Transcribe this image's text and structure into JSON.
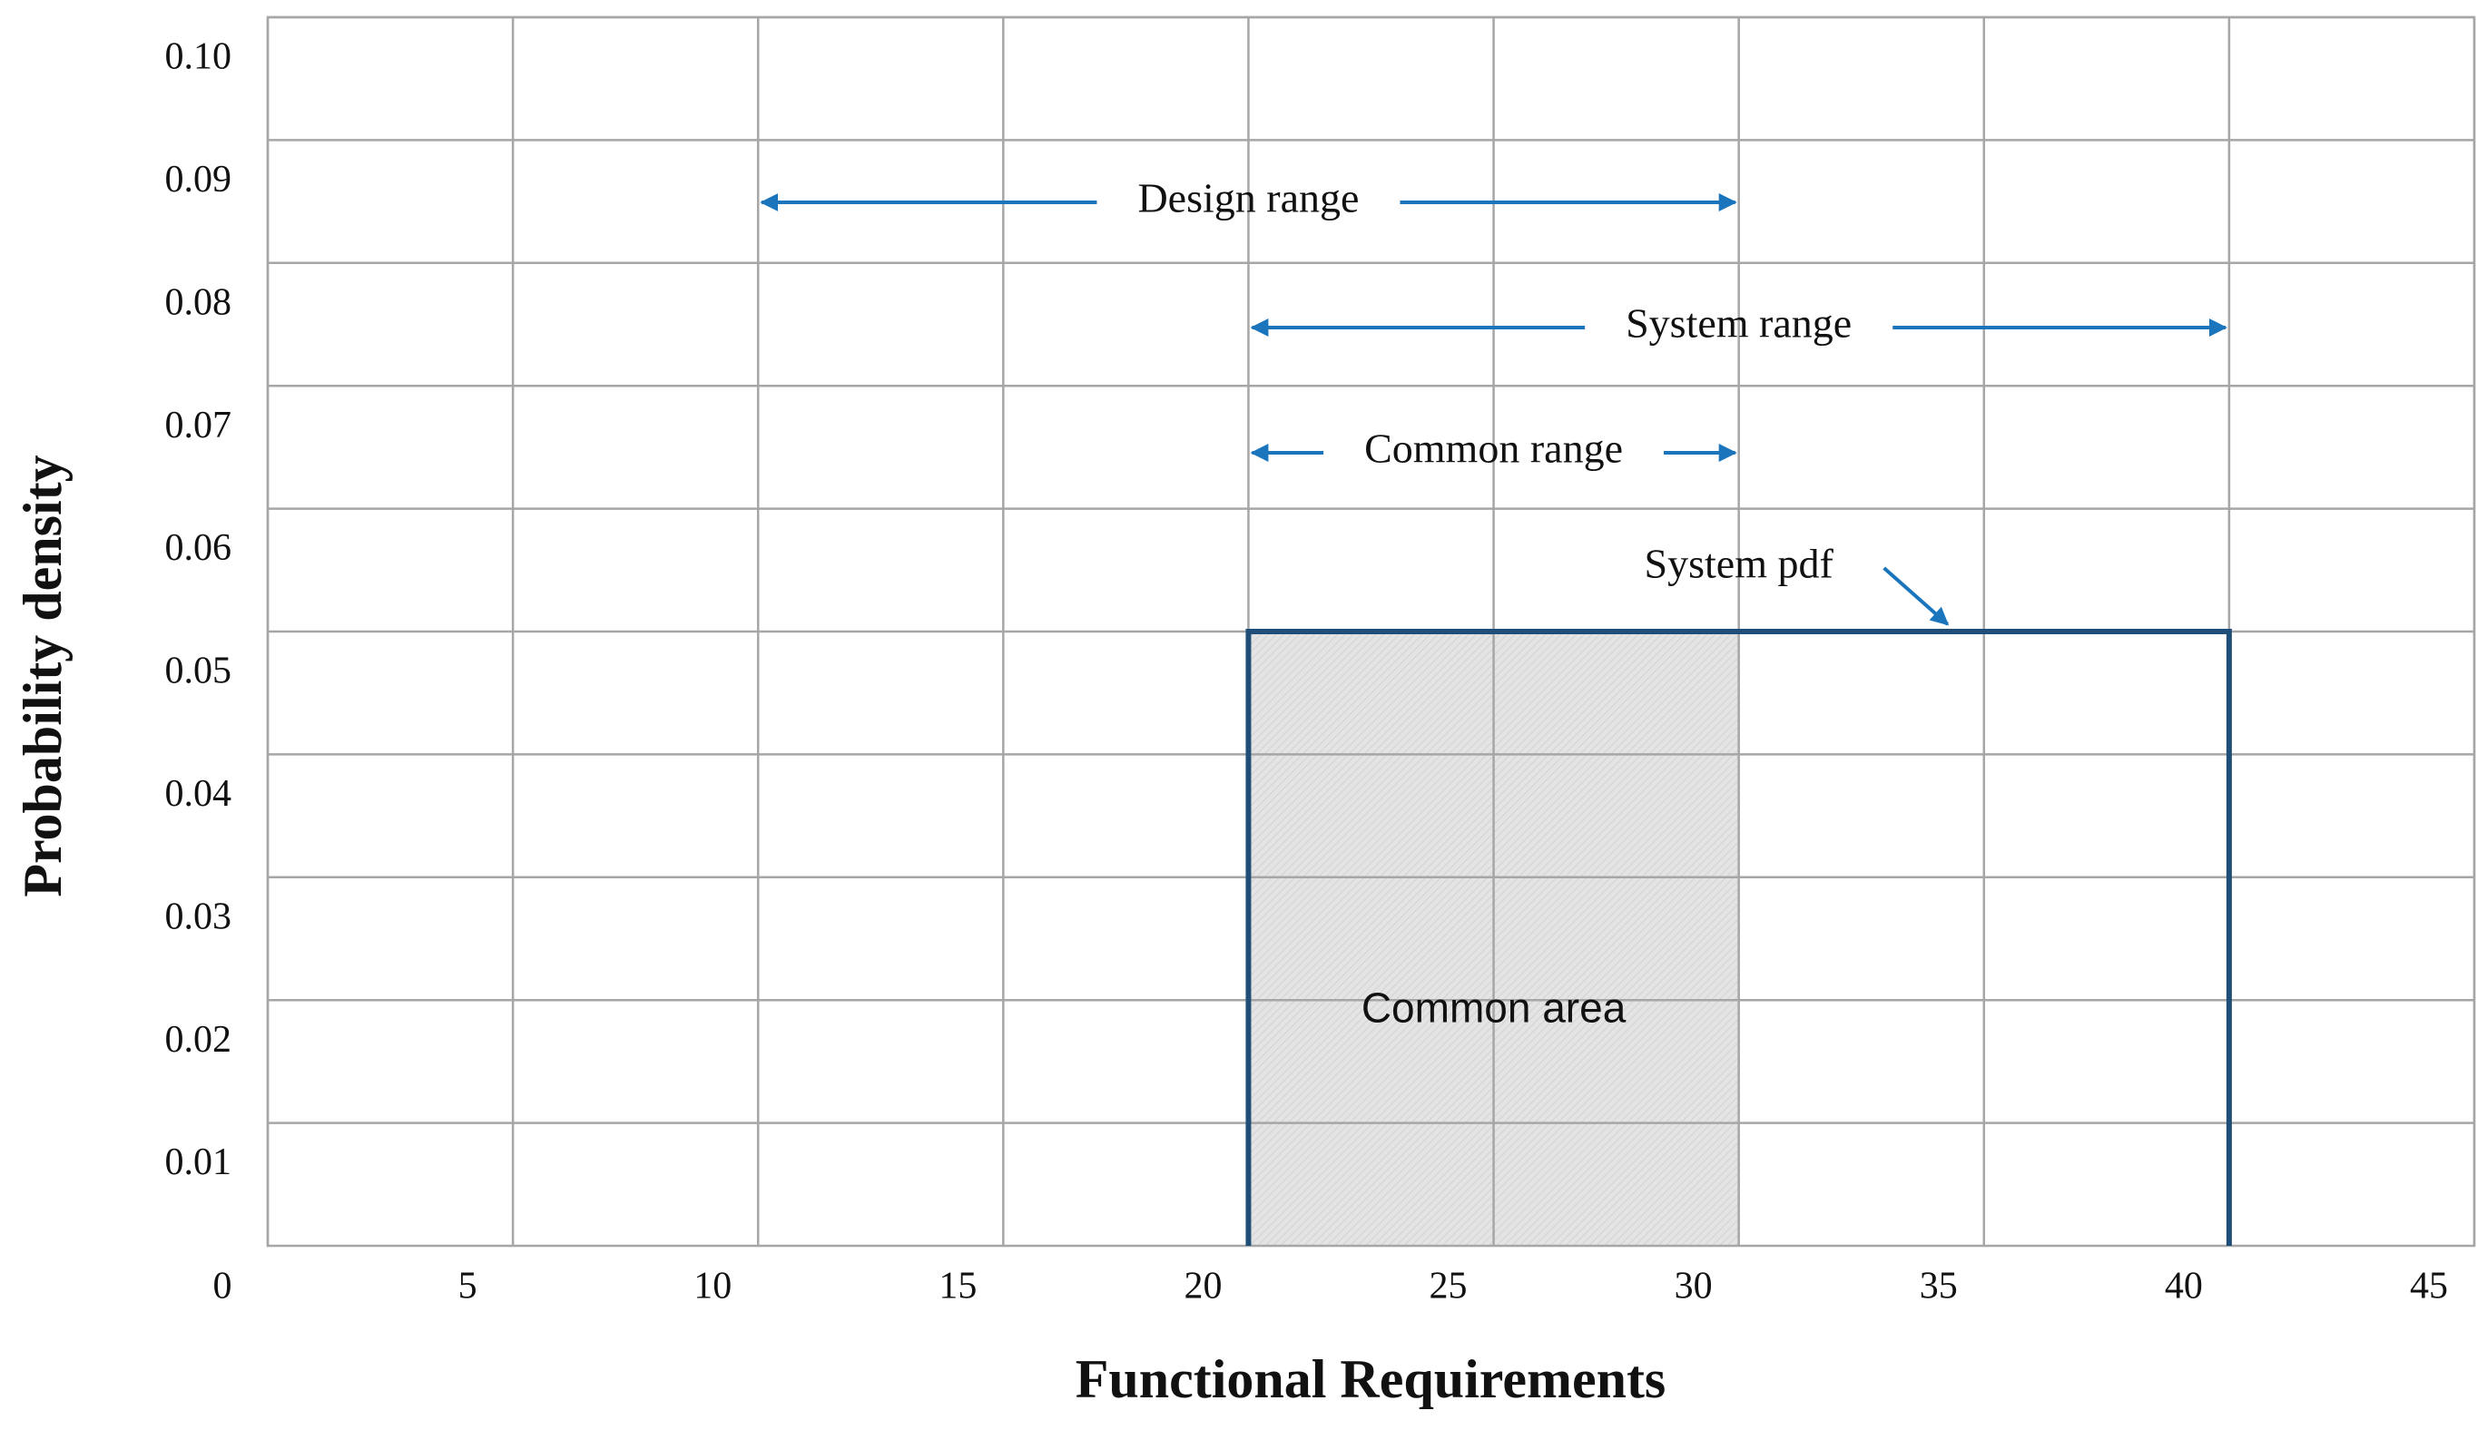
{
  "chart_data": {
    "type": "line",
    "xlabel": "Functional Requirements",
    "ylabel": "Probability density",
    "xlim": [
      0,
      45
    ],
    "xticks": [
      0,
      5,
      10,
      15,
      20,
      25,
      30,
      35,
      40,
      45
    ],
    "ylim": [
      0,
      0.1
    ],
    "yticks": [
      0.01,
      0.02,
      0.03,
      0.04,
      0.05,
      0.06,
      0.07,
      0.08,
      0.09,
      {
        "value": 0.1,
        "label": "0.10"
      }
    ],
    "grid": true,
    "series": [
      {
        "name": "System pdf",
        "color": "#1f4e79",
        "x": [
          20,
          20,
          40,
          40
        ],
        "values": [
          0,
          0.05,
          0.05,
          0
        ]
      }
    ],
    "common_area": {
      "label": "Common area",
      "x": [
        20,
        30
      ],
      "value": 0.05,
      "color": "#e4e4e4"
    },
    "arrow_color": "#1a75bc",
    "ranges": [
      {
        "label": "Design range",
        "x": [
          10,
          30
        ]
      },
      {
        "label": "System range",
        "x": [
          20,
          40
        ]
      },
      {
        "label": "Common range",
        "x": [
          20,
          30
        ]
      }
    ]
  }
}
